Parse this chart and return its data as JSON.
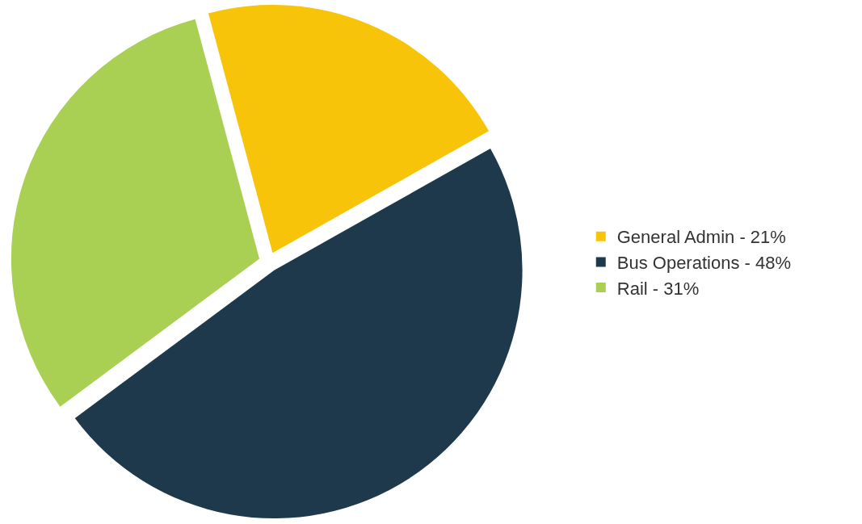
{
  "chart_data": {
    "type": "pie",
    "categories": [
      "General Admin - 21%",
      "Bus Operations - 48%",
      "Rail - 31%"
    ],
    "values": [
      21,
      48,
      31
    ],
    "colors": [
      "#f8c40a",
      "#1f394c",
      "#a9d052"
    ],
    "legend": "right"
  }
}
